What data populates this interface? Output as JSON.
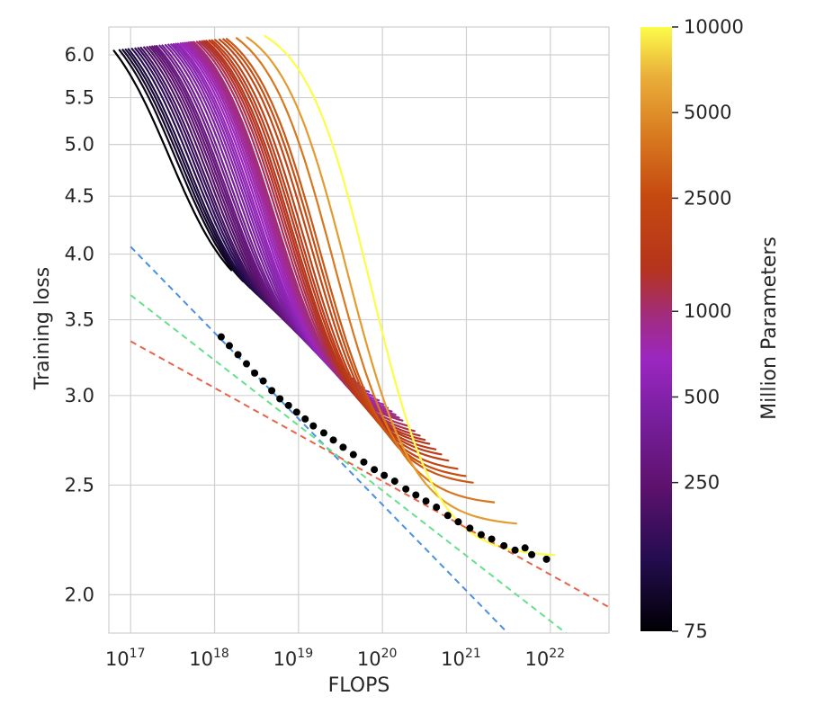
{
  "chart_data": {
    "type": "line",
    "xlabel": "FLOPS",
    "ylabel": "Training loss",
    "xscale": "log",
    "yscale": "log",
    "xlim": [
      5.5e+16,
      5e+22
    ],
    "ylim": [
      1.85,
      6.35
    ],
    "grid": true,
    "x_ticks": [
      {
        "value": 1e+17,
        "base": "10",
        "exp": "17"
      },
      {
        "value": 1e+18,
        "base": "10",
        "exp": "18"
      },
      {
        "value": 1e+19,
        "base": "10",
        "exp": "19"
      },
      {
        "value": 1e+20,
        "base": "10",
        "exp": "20"
      },
      {
        "value": 1e+21,
        "base": "10",
        "exp": "21"
      },
      {
        "value": 1e+22,
        "base": "10",
        "exp": "22"
      }
    ],
    "y_ticks": [
      {
        "value": 2.0,
        "label": "2.0"
      },
      {
        "value": 2.5,
        "label": "2.5"
      },
      {
        "value": 3.0,
        "label": "3.0"
      },
      {
        "value": 3.5,
        "label": "3.5"
      },
      {
        "value": 4.0,
        "label": "4.0"
      },
      {
        "value": 4.5,
        "label": "4.5"
      },
      {
        "value": 5.0,
        "label": "5.0"
      },
      {
        "value": 5.5,
        "label": "5.5"
      },
      {
        "value": 6.0,
        "label": "6.0"
      }
    ],
    "colorbar": {
      "label": "Million Parameters",
      "scale": "log",
      "range": [
        75,
        10000
      ],
      "colormap": "inferno",
      "ticks": [
        {
          "value": 10000,
          "label": "10000"
        },
        {
          "value": 5000,
          "label": "5000"
        },
        {
          "value": 2500,
          "label": "2500"
        },
        {
          "value": 1000,
          "label": "1000"
        },
        {
          "value": 500,
          "label": "500"
        },
        {
          "value": 250,
          "label": "250"
        },
        {
          "value": 75,
          "label": "75"
        }
      ]
    },
    "model_sizes_millions": [
      75,
      90,
      100,
      110,
      120,
      135,
      150,
      165,
      180,
      200,
      220,
      240,
      260,
      280,
      300,
      330,
      360,
      400,
      440,
      480,
      520,
      560,
      600,
      650,
      700,
      750,
      800,
      850,
      900,
      950,
      1000,
      1100,
      1200,
      1300,
      1400,
      1500,
      1650,
      1800,
      2000,
      2300,
      2600,
      2900,
      4000,
      5600,
      10000
    ],
    "fit_lines": [
      {
        "color": "#4a90e2",
        "points": [
          [
            1e+17,
            4.06
          ],
          [
            6e+21,
            1.76
          ]
        ]
      },
      {
        "color": "#66e08a",
        "points": [
          [
            1e+17,
            3.68
          ],
          [
            3e+22,
            1.78
          ]
        ]
      },
      {
        "color": "#e8634a",
        "points": [
          [
            1e+17,
            3.35
          ],
          [
            5e+22,
            1.95
          ]
        ]
      }
    ],
    "frontier_points": [
      [
        1.2e+18,
        3.38
      ],
      [
        1.5e+18,
        3.32
      ],
      [
        1.9e+18,
        3.26
      ],
      [
        2.4e+18,
        3.2
      ],
      [
        3e+18,
        3.14
      ],
      [
        3.8e+18,
        3.09
      ],
      [
        4.8e+18,
        3.03
      ],
      [
        6e+18,
        2.98
      ],
      [
        7.6e+18,
        2.94
      ],
      [
        9.5e+18,
        2.9
      ],
      [
        1.2e+19,
        2.86
      ],
      [
        1.5e+19,
        2.82
      ],
      [
        2e+19,
        2.78
      ],
      [
        2.6e+19,
        2.74
      ],
      [
        3.4e+19,
        2.7
      ],
      [
        4.5e+19,
        2.66
      ],
      [
        6e+19,
        2.62
      ],
      [
        8e+19,
        2.58
      ],
      [
        1.05e+20,
        2.55
      ],
      [
        1.4e+20,
        2.52
      ],
      [
        1.9e+20,
        2.48
      ],
      [
        2.5e+20,
        2.45
      ],
      [
        3.3e+20,
        2.42
      ],
      [
        4.4e+20,
        2.39
      ],
      [
        6e+20,
        2.35
      ],
      [
        8e+20,
        2.32
      ],
      [
        1.1e+21,
        2.29
      ],
      [
        1.5e+21,
        2.26
      ],
      [
        2e+21,
        2.24
      ],
      [
        2.8e+21,
        2.21
      ],
      [
        3.8e+21,
        2.19
      ],
      [
        5e+21,
        2.2
      ],
      [
        6e+21,
        2.17
      ],
      [
        9e+21,
        2.15
      ]
    ]
  }
}
